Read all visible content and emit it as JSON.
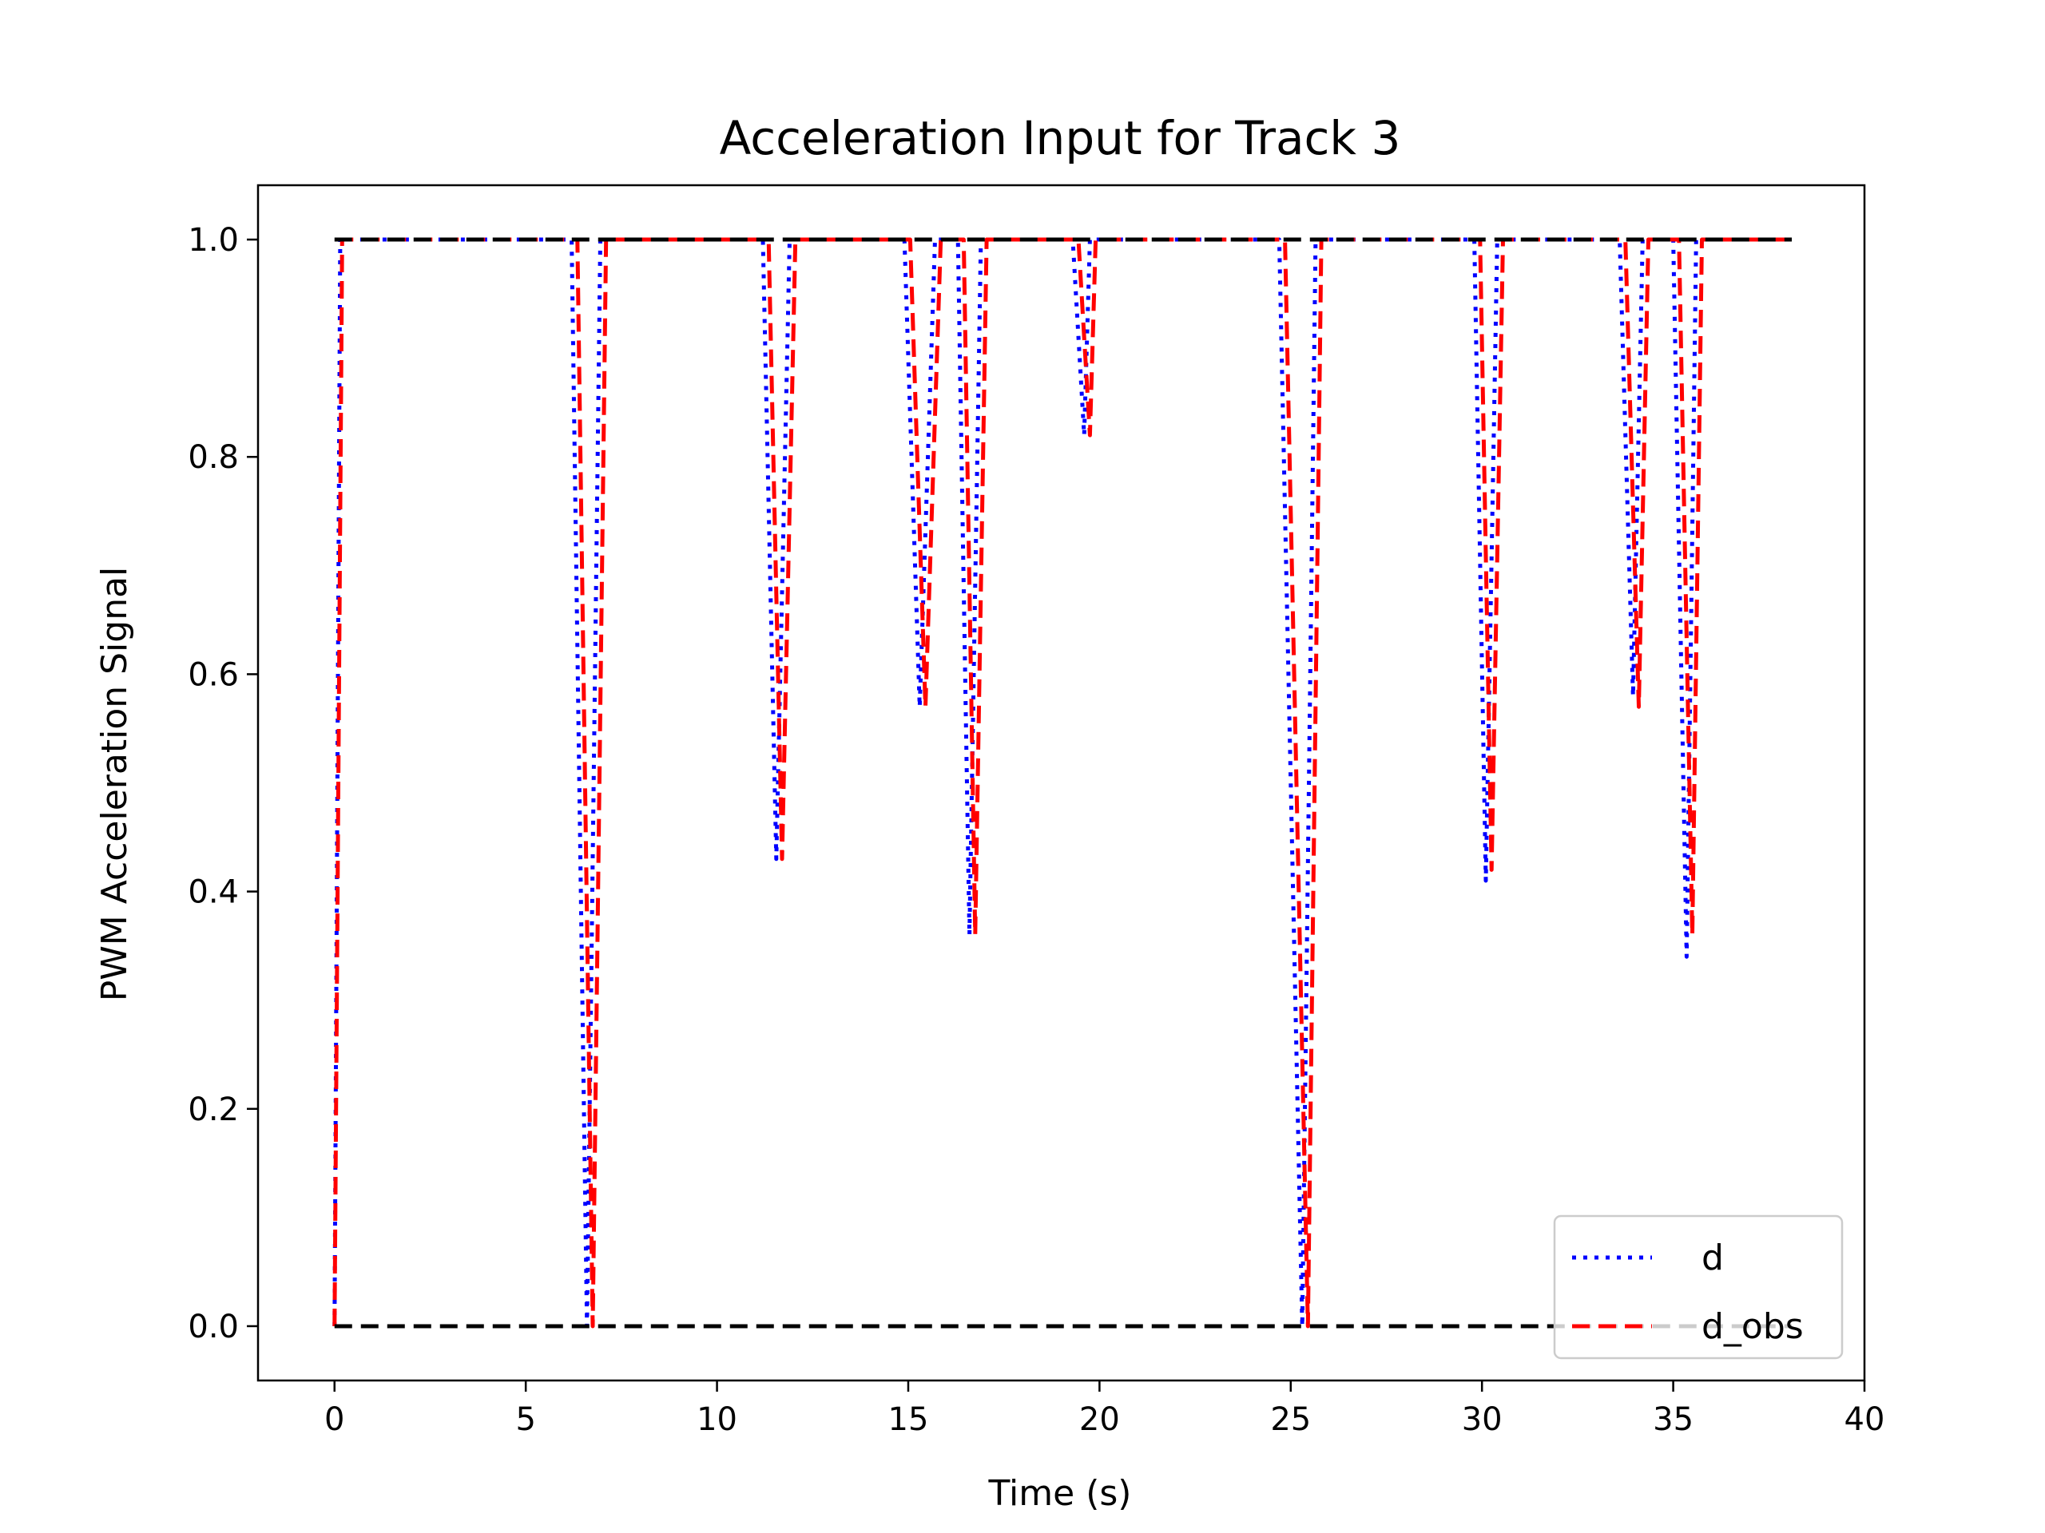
{
  "chart_data": {
    "type": "line",
    "title": "Acceleration Input for Track 3",
    "xlabel": "Time (s)",
    "ylabel": "PWM Acceleration Signal",
    "xlim": [
      -2,
      40
    ],
    "ylim": [
      -0.05,
      1.05
    ],
    "xticks": [
      "0",
      "5",
      "10",
      "15",
      "20",
      "25",
      "30",
      "35",
      "40"
    ],
    "xtick_values": [
      0,
      5,
      10,
      15,
      20,
      25,
      30,
      35,
      40
    ],
    "yticks": [
      "0.0",
      "0.2",
      "0.4",
      "0.6",
      "0.8",
      "1.0"
    ],
    "ytick_values": [
      0.0,
      0.2,
      0.4,
      0.6,
      0.8,
      1.0
    ],
    "grid": false,
    "legend_position": "lower right",
    "series": [
      {
        "name": "d",
        "color": "#0000ff",
        "style": "dotted",
        "x": [
          0,
          0.15,
          6.2,
          6.6,
          6.95,
          11.2,
          11.55,
          11.9,
          14.9,
          15.3,
          15.7,
          16.3,
          16.6,
          16.9,
          19.3,
          19.6,
          19.75,
          24.7,
          25.3,
          25.65,
          29.8,
          30.1,
          30.4,
          33.6,
          33.95,
          34.2,
          35.0,
          35.35,
          35.6,
          38.1
        ],
        "y": [
          0.0,
          1.0,
          1.0,
          0.0,
          1.0,
          1.0,
          0.43,
          1.0,
          1.0,
          0.57,
          1.0,
          1.0,
          0.36,
          1.0,
          1.0,
          0.82,
          1.0,
          1.0,
          0.0,
          1.0,
          1.0,
          0.41,
          1.0,
          1.0,
          0.58,
          1.0,
          1.0,
          0.34,
          1.0,
          1.0
        ]
      },
      {
        "name": "d_obs",
        "color": "#ff0000",
        "style": "dashed",
        "x": [
          0,
          0.2,
          6.35,
          6.75,
          7.1,
          11.35,
          11.7,
          12.05,
          15.05,
          15.45,
          15.85,
          16.45,
          16.75,
          17.05,
          19.45,
          19.75,
          19.9,
          24.85,
          25.45,
          25.8,
          29.95,
          30.25,
          30.55,
          33.75,
          34.1,
          34.35,
          35.15,
          35.5,
          35.75,
          38.1
        ],
        "y": [
          0.0,
          1.0,
          1.0,
          0.0,
          1.0,
          1.0,
          0.43,
          1.0,
          1.0,
          0.57,
          1.0,
          1.0,
          0.36,
          1.0,
          1.0,
          0.82,
          1.0,
          1.0,
          0.0,
          1.0,
          1.0,
          0.42,
          1.0,
          1.0,
          0.57,
          1.0,
          1.0,
          0.36,
          1.0,
          1.0
        ]
      }
    ],
    "reference_lines": [
      {
        "y": 1.0,
        "x_range": [
          0,
          38.1
        ],
        "color": "#000000",
        "style": "dashed"
      },
      {
        "y": 0.0,
        "x_range": [
          0,
          38.1
        ],
        "color": "#000000",
        "style": "dashed"
      }
    ]
  }
}
